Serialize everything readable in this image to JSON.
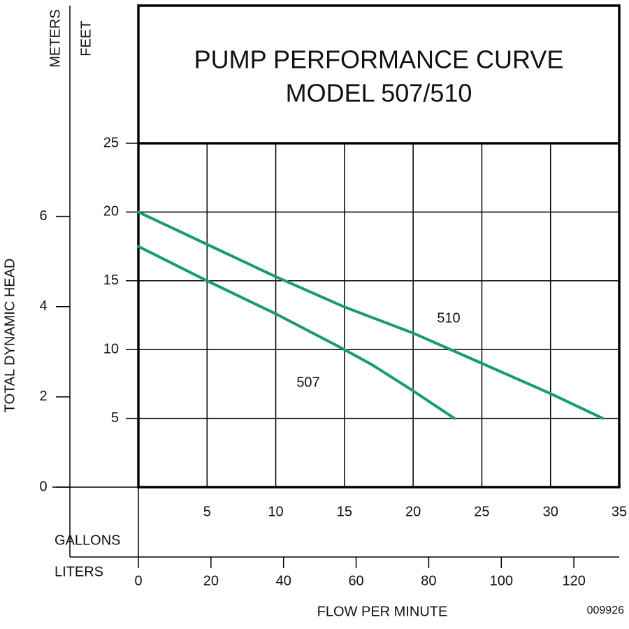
{
  "chart_data": {
    "type": "line",
    "title": "PUMP PERFORMANCE CURVE",
    "subtitle": "MODEL 507/510",
    "xlabel": "FLOW PER MINUTE",
    "ylabel": "TOTAL DYNAMIC HEAD",
    "x_unit_label": "GALLONS",
    "x2_unit_label": "LITERS",
    "y_unit_label": "FEET",
    "y2_unit_label": "METERS",
    "code": "009926",
    "xlim": [
      0,
      35
    ],
    "xticks": [
      5,
      10,
      15,
      20,
      25,
      30,
      35
    ],
    "x2lim": [
      0,
      132.49
    ],
    "x2ticks": [
      0,
      20,
      40,
      60,
      80,
      100,
      120
    ],
    "ylim": [
      0,
      25
    ],
    "yticks": [
      5,
      10,
      15,
      20,
      25
    ],
    "y2lim": [
      0,
      7.62
    ],
    "y2ticks": [
      0,
      2,
      4,
      6
    ],
    "grid": true,
    "series": [
      {
        "name": "507",
        "color": "#1a9b6e",
        "x": [
          0,
          5,
          10,
          15,
          17,
          20,
          23
        ],
        "values": [
          17.5,
          15,
          12.6,
          10,
          8.9,
          7,
          5
        ]
      },
      {
        "name": "510",
        "color": "#1a9b6e",
        "x": [
          0,
          10,
          15,
          20,
          25,
          30,
          33.8
        ],
        "values": [
          20,
          15.3,
          13.1,
          11.2,
          9,
          6.8,
          5
        ]
      }
    ]
  }
}
